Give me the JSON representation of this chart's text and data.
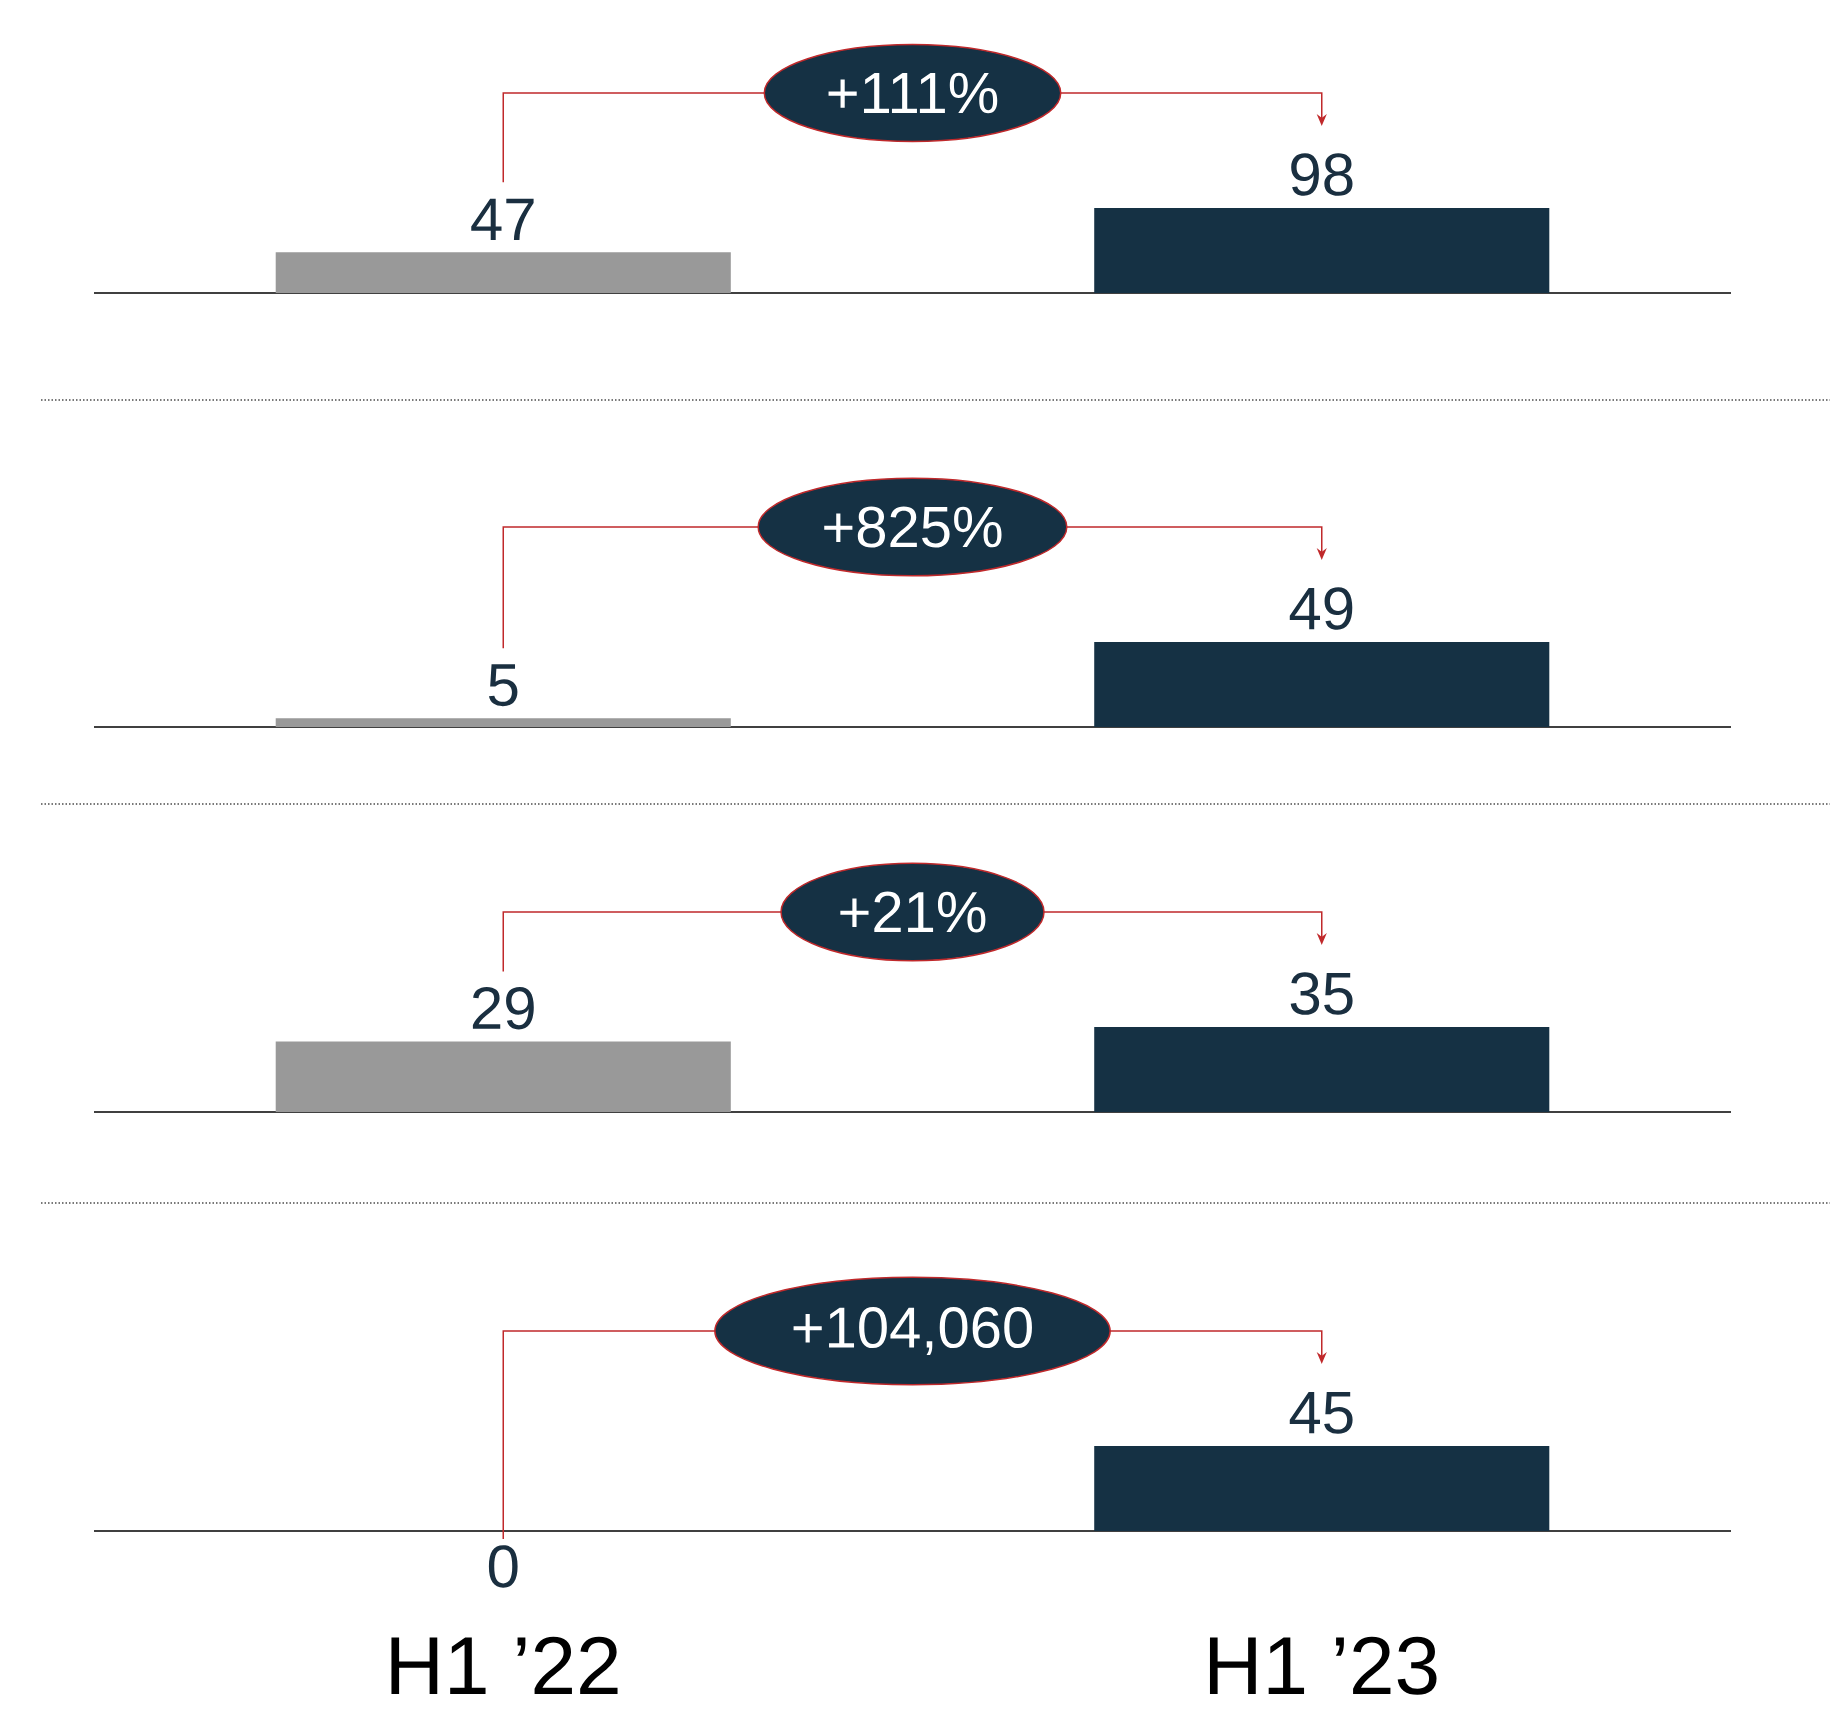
{
  "chart_data": [
    {
      "type": "bar",
      "categories": [
        null,
        null
      ],
      "values": [
        47,
        98
      ],
      "colors": [
        "#999999",
        "#153144"
      ],
      "data_labels": true,
      "annotations": [
        "+111%"
      ],
      "tick_labels": false
    },
    {
      "type": "bar",
      "categories": [
        null,
        null
      ],
      "values": [
        5,
        49
      ],
      "colors": [
        "#999999",
        "#153144"
      ],
      "data_labels": true,
      "annotations": [
        "+825%"
      ],
      "tick_labels": false
    },
    {
      "type": "bar",
      "categories": [
        null,
        null
      ],
      "values": [
        29,
        35
      ],
      "colors": [
        "#999999",
        "#153144"
      ],
      "data_labels": true,
      "annotations": [
        "+21%"
      ],
      "tick_labels": false
    },
    {
      "type": "bar",
      "categories": [
        "H1 ’22",
        "H1 ’23"
      ],
      "values": [
        0,
        45
      ],
      "colors": [
        "#999999",
        "#153144"
      ],
      "data_labels": true,
      "annotations": [
        "+104,060"
      ],
      "tick_labels": "x"
    }
  ]
}
